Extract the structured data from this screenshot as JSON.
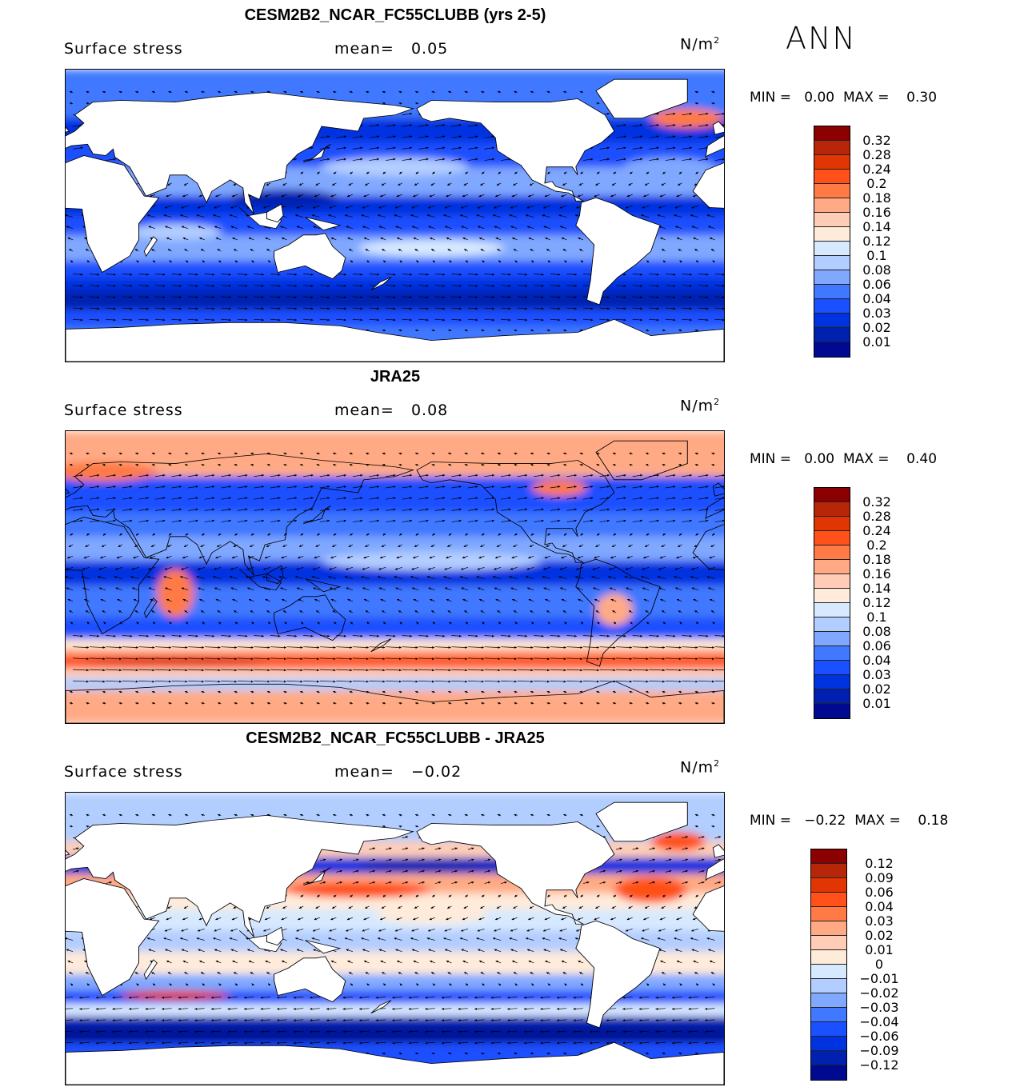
{
  "season": "ANN",
  "palette": [
    "#8b0000",
    "#b8260a",
    "#e23504",
    "#ff5119",
    "#ff7a45",
    "#ffaa85",
    "#ffcdb5",
    "#ffebd9",
    "#d7e9ff",
    "#b2cdff",
    "#80a8ff",
    "#4078ff",
    "#1a50ff",
    "#0033e0",
    "#0021b0",
    "#000a90"
  ],
  "panels": [
    {
      "title": "CESM2B2_NCAR_FC55CLUBB (yrs 2-5)",
      "variable": "Surface stress",
      "mean_label": "mean=",
      "mean": "0.05",
      "units": "N/m",
      "units_exp": "2",
      "min_label": "MIN =",
      "min": "0.00",
      "max_label": "MAX =",
      "max": "0.30",
      "levels": [
        "0.32",
        "0.28",
        "0.24",
        "0.2",
        "0.18",
        "0.16",
        "0.14",
        "0.12",
        "0.1",
        "0.08",
        "0.06",
        "0.04",
        "0.03",
        "0.02",
        "0.01"
      ]
    },
    {
      "title": "JRA25",
      "variable": "Surface stress",
      "mean_label": "mean=",
      "mean": "0.08",
      "units": "N/m",
      "units_exp": "2",
      "min_label": "MIN =",
      "min": "0.00",
      "max_label": "MAX =",
      "max": "0.40",
      "levels": [
        "0.32",
        "0.28",
        "0.24",
        "0.2",
        "0.18",
        "0.16",
        "0.14",
        "0.12",
        "0.1",
        "0.08",
        "0.06",
        "0.04",
        "0.03",
        "0.02",
        "0.01"
      ]
    },
    {
      "title": "CESM2B2_NCAR_FC55CLUBB - JRA25",
      "variable": "Surface stress",
      "mean_label": "mean=",
      "mean": "−0.02",
      "units": "N/m",
      "units_exp": "2",
      "min_label": "MIN =",
      "min": "−0.22",
      "max_label": "MAX =",
      "max": "0.18",
      "levels": [
        "0.12",
        "0.09",
        "0.06",
        "0.04",
        "0.03",
        "0.02",
        "0.01",
        "0",
        "−0.01",
        "−0.02",
        "−0.03",
        "−0.04",
        "−0.06",
        "−0.09",
        "−0.12"
      ]
    }
  ]
}
